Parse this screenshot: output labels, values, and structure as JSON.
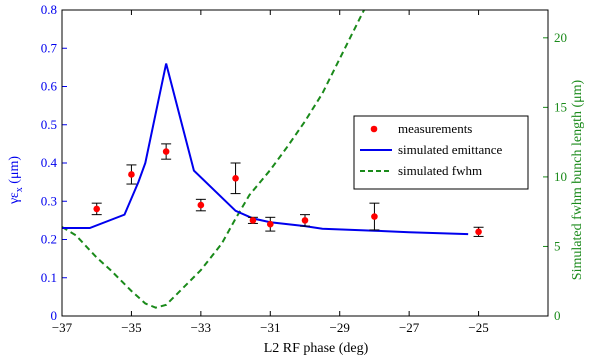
{
  "chart_data": {
    "type": "line",
    "xlabel": "L2 RF phase (deg)",
    "ylabel_left": "γε",
    "ylabel_left_sub": "x",
    "ylabel_left_unit": " (μm)",
    "ylabel_right": "Simulated fwhm bunch length  (μm)",
    "xlim": [
      -37,
      -23
    ],
    "ylim_left": [
      0,
      0.8
    ],
    "ylim_right": [
      0,
      22
    ],
    "x_ticks": [
      -37,
      -35,
      -33,
      -31,
      -29,
      -27,
      -25
    ],
    "y_left_ticks": [
      0,
      0.1,
      0.2,
      0.3,
      0.4,
      0.5,
      0.6,
      0.7,
      0.8
    ],
    "y_right_ticks": [
      0,
      5,
      10,
      15,
      20
    ],
    "grid": false,
    "legend_position": "right",
    "colors": {
      "measurements": "#ff0000",
      "emittance": "#0000ee",
      "fwhm": "#1a8a1a",
      "left_axis": "#0000ee",
      "right_axis": "#1a8a1a"
    },
    "series": [
      {
        "name": "measurements",
        "kind": "errorbar",
        "points": [
          {
            "x": -36,
            "y": 0.28,
            "err": 0.015
          },
          {
            "x": -35,
            "y": 0.37,
            "err": 0.025
          },
          {
            "x": -34,
            "y": 0.43,
            "err": 0.02
          },
          {
            "x": -33,
            "y": 0.29,
            "err": 0.015
          },
          {
            "x": -32,
            "y": 0.36,
            "err": 0.04
          },
          {
            "x": -31.5,
            "y": 0.25,
            "err": 0.008
          },
          {
            "x": -31,
            "y": 0.24,
            "err": 0.018
          },
          {
            "x": -30,
            "y": 0.25,
            "err": 0.015
          },
          {
            "x": -28,
            "y": 0.26,
            "err": 0.035
          },
          {
            "x": -25,
            "y": 0.22,
            "err": 0.012
          }
        ]
      },
      {
        "name": "simulated emittance",
        "kind": "line",
        "axis": "left",
        "x": [
          -37,
          -36.2,
          -35.2,
          -34.8,
          -34.6,
          -34,
          -33.2,
          -32,
          -31.5,
          -31,
          -30,
          -29.5,
          -28,
          -27,
          -25.3
        ],
        "y": [
          0.23,
          0.23,
          0.265,
          0.35,
          0.4,
          0.66,
          0.38,
          0.275,
          0.255,
          0.245,
          0.235,
          0.228,
          0.223,
          0.219,
          0.214
        ]
      },
      {
        "name": "simulated fwhm",
        "kind": "dashed-line",
        "axis": "right",
        "x": [
          -37,
          -36.6,
          -36,
          -35.6,
          -35,
          -34.6,
          -34.3,
          -34,
          -33.6,
          -33,
          -32.4,
          -32,
          -31.6,
          -31,
          -30.5,
          -30,
          -29.5,
          -29,
          -28.6,
          -28.3
        ],
        "y": [
          6.4,
          5.8,
          4.2,
          3.3,
          1.8,
          0.9,
          0.6,
          0.8,
          1.8,
          3.3,
          5.2,
          7.0,
          8.7,
          10.5,
          12.2,
          14.0,
          16.0,
          18.5,
          20.5,
          22
        ]
      }
    ]
  }
}
